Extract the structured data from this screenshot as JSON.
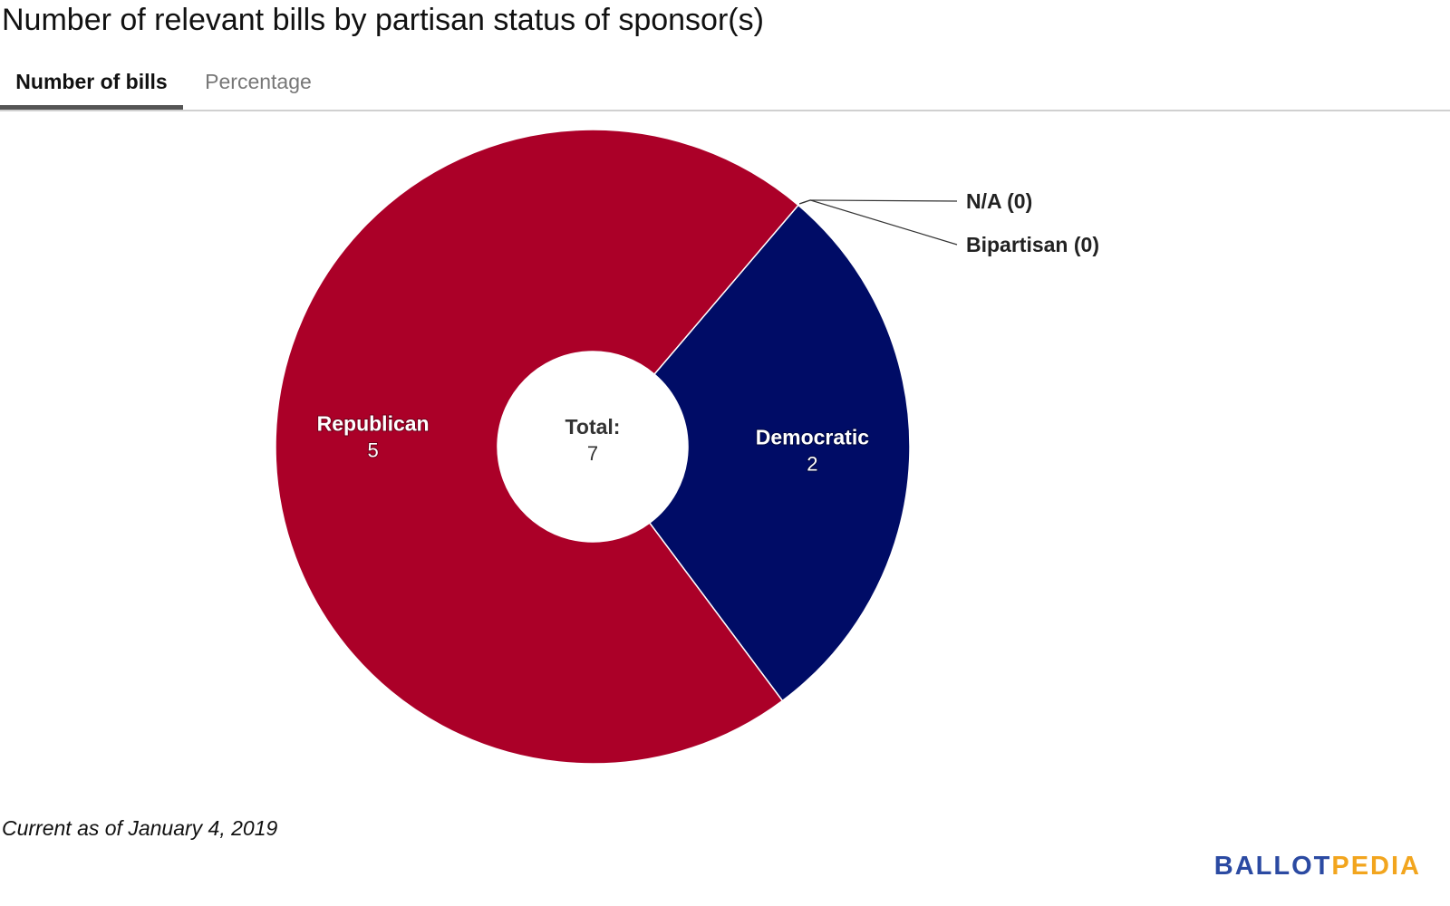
{
  "header": {
    "title": "Number of relevant bills by partisan status of sponsor(s)"
  },
  "tabs": [
    {
      "label": "Number of bills",
      "active": true
    },
    {
      "label": "Percentage",
      "active": false
    }
  ],
  "chart_data": {
    "type": "pie",
    "title": "Number of relevant bills by partisan status of sponsor(s)",
    "donut": true,
    "center_label": "Total:",
    "center_value": "7",
    "total": 7,
    "slices": [
      {
        "name": "Democratic",
        "value": 2,
        "value_label": "2",
        "color": "#000c66"
      },
      {
        "name": "Republican",
        "value": 5,
        "value_label": "5",
        "color": "#ab0028"
      },
      {
        "name": "N/A",
        "value": 0,
        "callout": "N/A (0)",
        "color": "#999999"
      },
      {
        "name": "Bipartisan",
        "value": 0,
        "callout": "Bipartisan (0)",
        "color": "#6a3d9a"
      }
    ]
  },
  "footer": {
    "note": "Current as of January 4, 2019",
    "logo_part1": "BALLOT",
    "logo_part2": "PEDIA"
  }
}
